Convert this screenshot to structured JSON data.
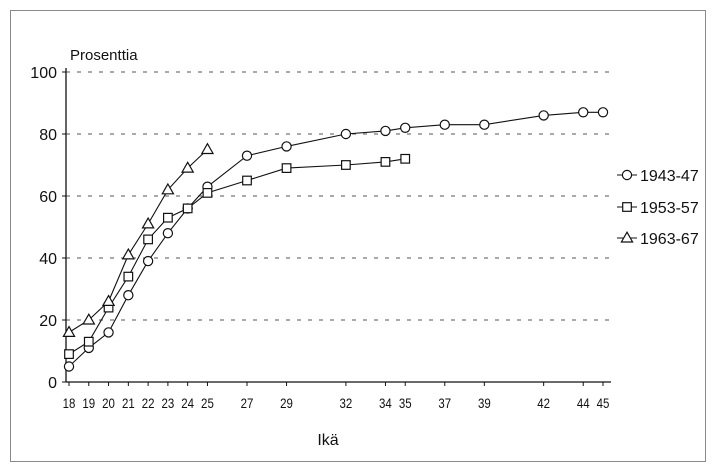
{
  "chart_data": {
    "type": "line",
    "ylabel": "Prosenttia",
    "xlabel": "Ikä",
    "ylim": [
      0,
      100
    ],
    "yticks": [
      0,
      20,
      40,
      60,
      80,
      100
    ],
    "xticks": [
      18,
      19,
      20,
      21,
      22,
      23,
      24,
      25,
      27,
      29,
      32,
      34,
      35,
      37,
      39,
      42,
      44,
      45
    ],
    "grid": "horizontal dashed",
    "legend_position": "right",
    "series": [
      {
        "name": "1943-47",
        "marker": "circle",
        "x": [
          18,
          19,
          20,
          21,
          22,
          23,
          24,
          25,
          27,
          29,
          32,
          34,
          35,
          37,
          39,
          42,
          44,
          45
        ],
        "y": [
          5,
          11,
          16,
          28,
          39,
          48,
          56,
          63,
          73,
          76,
          80,
          81,
          82,
          83,
          83,
          86,
          87,
          87
        ]
      },
      {
        "name": "1953-57",
        "marker": "square",
        "x": [
          18,
          19,
          20,
          21,
          22,
          23,
          24,
          25,
          27,
          29,
          32,
          34,
          35
        ],
        "y": [
          9,
          13,
          24,
          34,
          46,
          53,
          56,
          61,
          65,
          69,
          70,
          71,
          72
        ]
      },
      {
        "name": "1963-67",
        "marker": "triangle",
        "x": [
          18,
          19,
          20,
          21,
          22,
          23,
          24,
          25
        ],
        "y": [
          16,
          20,
          26,
          41,
          51,
          62,
          69,
          75
        ]
      }
    ]
  }
}
